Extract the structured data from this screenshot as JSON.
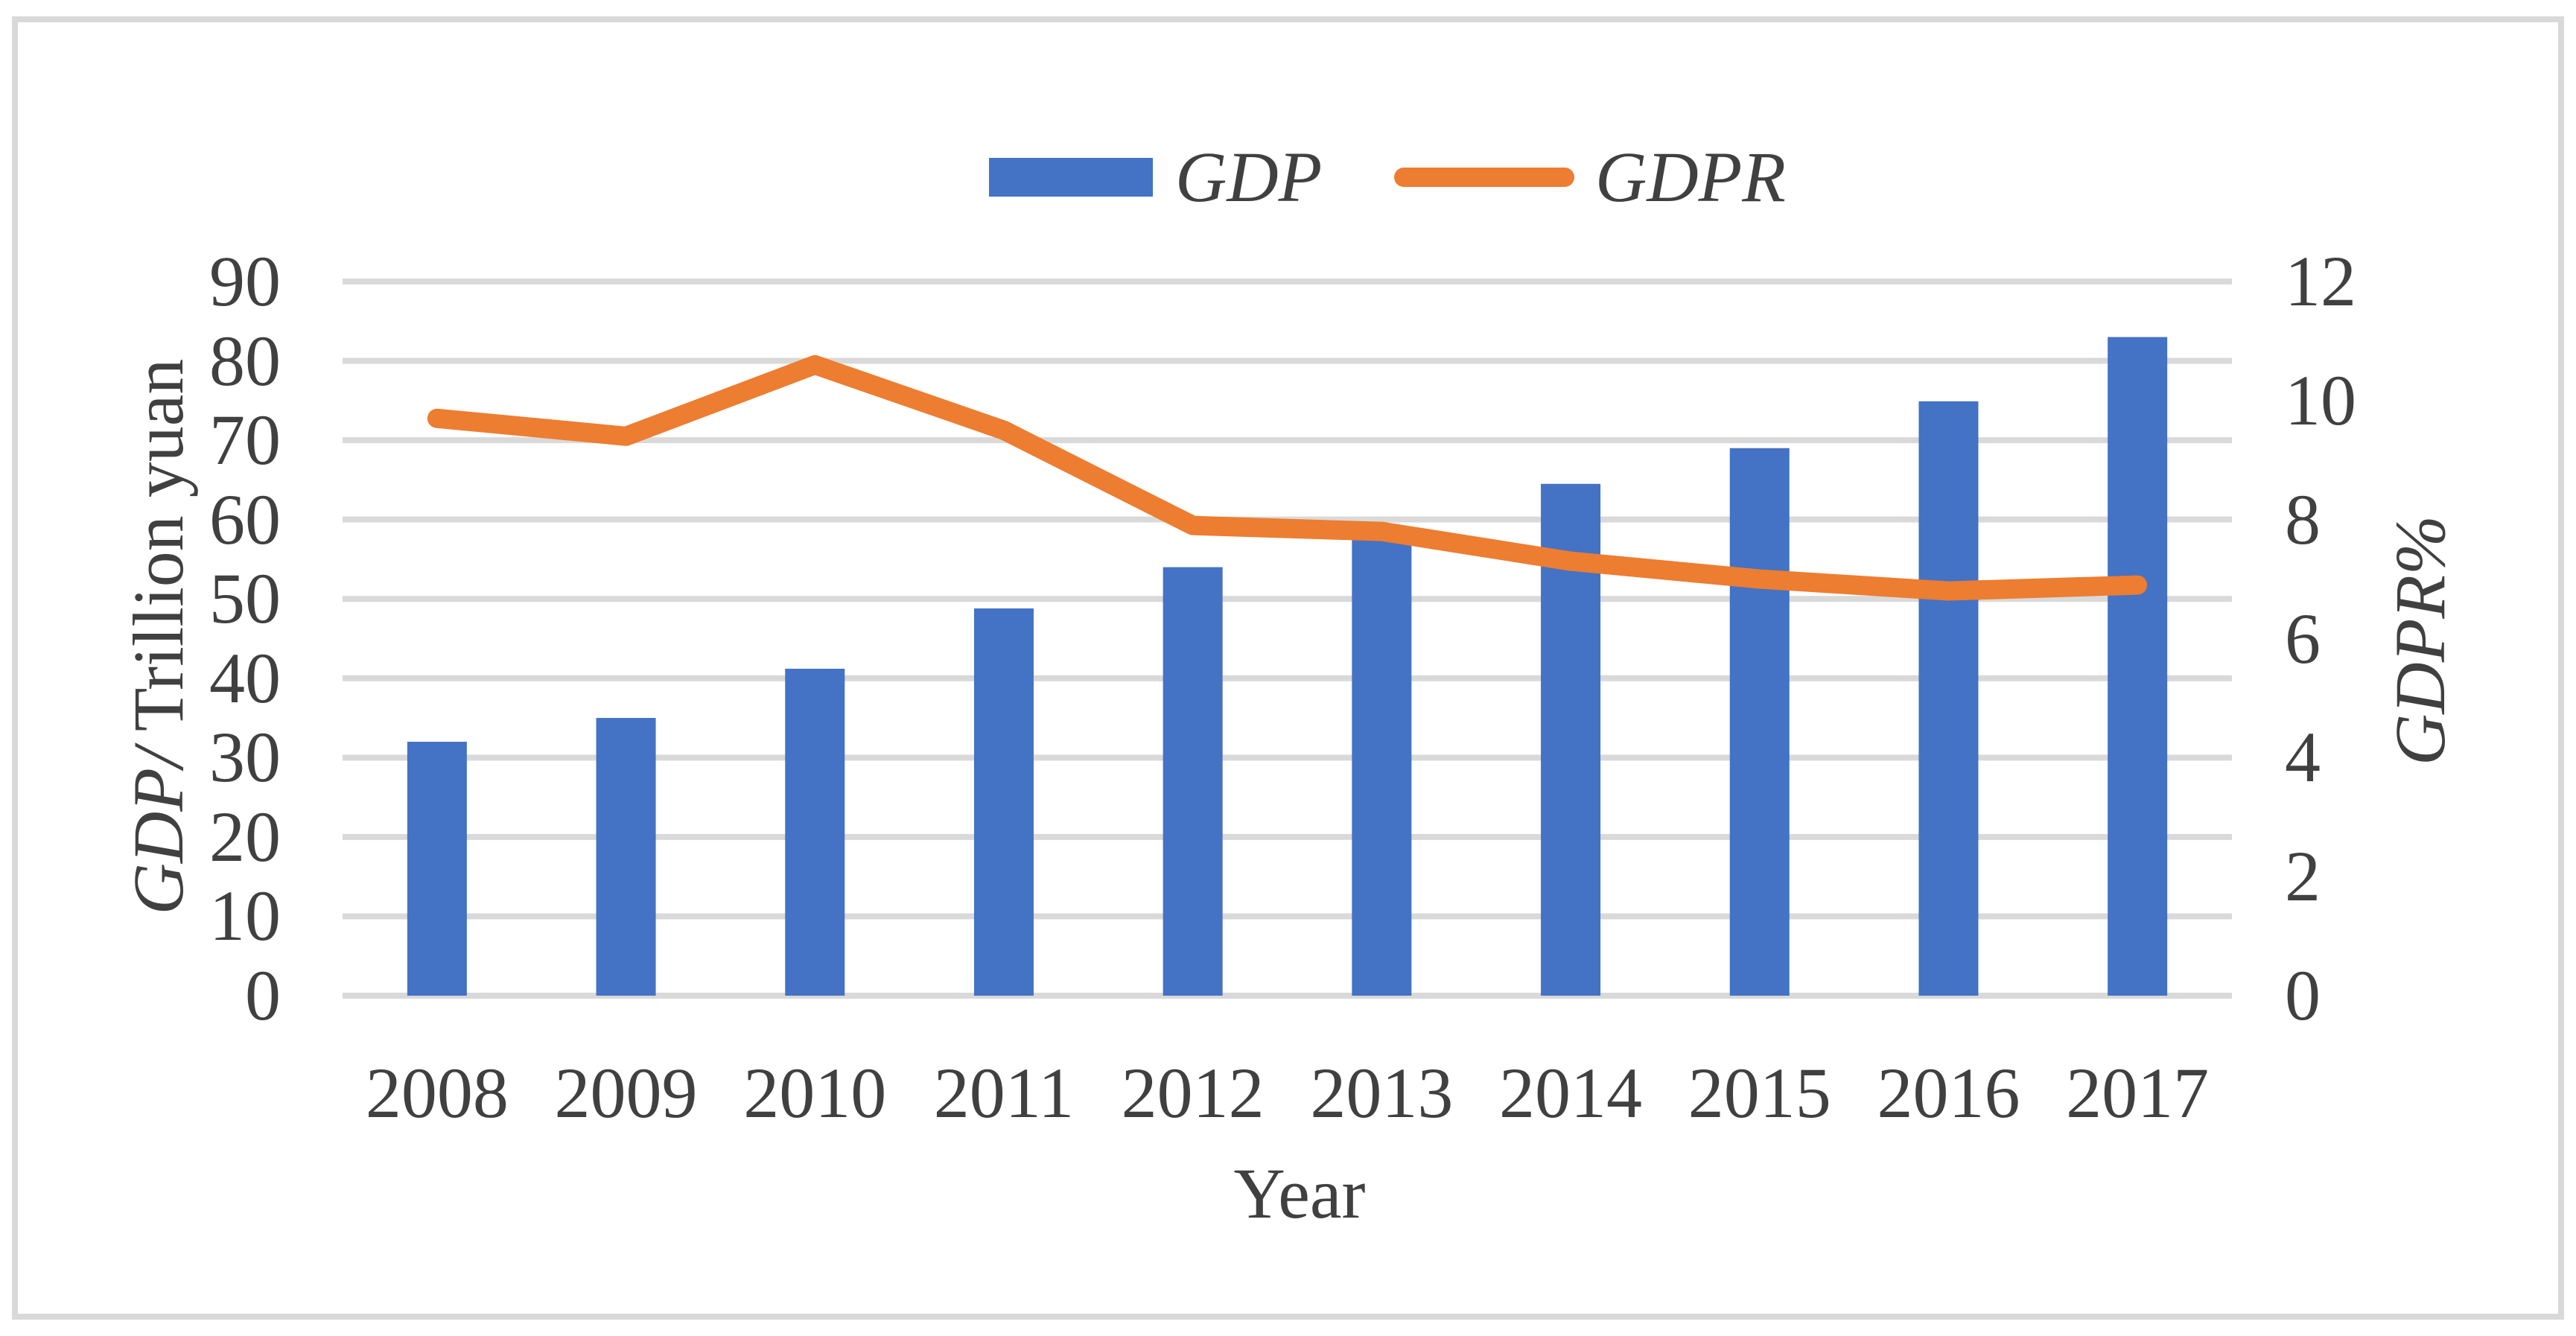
{
  "figure": {
    "background": "#FFFFFF",
    "border_color": "#D9D9D9",
    "gridline_color": "#D9D9D9",
    "text_color": "#404040"
  },
  "legend": {
    "gdp_label": "GDP",
    "gdpr_label": "GDPR"
  },
  "axes": {
    "left_title_italic": "GDP/",
    "left_title_regular": " Trillion yuan",
    "right_title": "GDPR%",
    "x_title": "Year"
  },
  "chart_data": {
    "type": "combo",
    "categories": [
      "2008",
      "2009",
      "2010",
      "2011",
      "2012",
      "2013",
      "2014",
      "2015",
      "2016",
      "2017"
    ],
    "series": [
      {
        "name": "GDP",
        "chart": "bar",
        "axis": "left",
        "color": "#4472C4",
        "values": [
          32,
          35,
          41.2,
          48.8,
          54,
          57.7,
          64.5,
          69,
          74.9,
          83
        ]
      },
      {
        "name": "GDPR",
        "chart": "line",
        "axis": "right",
        "color": "#ED7D31",
        "values": [
          9.7,
          9.4,
          10.6,
          9.5,
          7.9,
          7.8,
          7.3,
          7.0,
          6.8,
          6.9
        ]
      }
    ],
    "left_axis": {
      "title": "GDP/ Trillion yuan",
      "min": 0,
      "max": 90,
      "step": 10,
      "ticks": [
        0,
        10,
        20,
        30,
        40,
        50,
        60,
        70,
        80,
        90
      ]
    },
    "right_axis": {
      "title": "GDPR%",
      "min": 0,
      "max": 12,
      "step": 2,
      "ticks": [
        0,
        2,
        4,
        6,
        8,
        10,
        12
      ]
    },
    "x_axis": {
      "title": "Year"
    },
    "legend_position": "top-center",
    "grid": true
  }
}
